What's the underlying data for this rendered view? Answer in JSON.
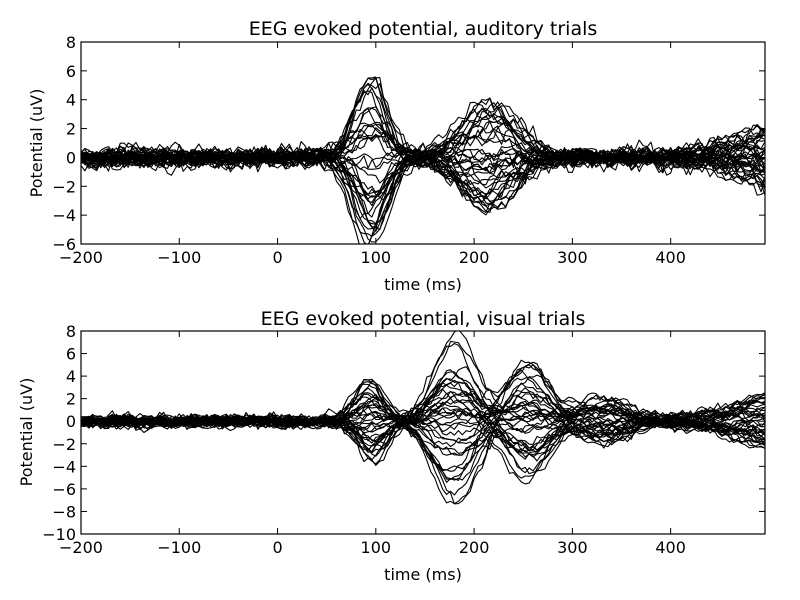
{
  "chart_data": [
    {
      "type": "line",
      "title": "EEG evoked potential, auditory trials",
      "xlabel": "time (ms)",
      "ylabel": "Potential (uV)",
      "xlim": [
        -200,
        496
      ],
      "ylim": [
        -6,
        8
      ],
      "xticks": [
        -200,
        -100,
        0,
        100,
        200,
        300,
        400
      ],
      "xtick_labels": [
        "−200",
        "−100",
        "0",
        "100",
        "200",
        "300",
        "400"
      ],
      "yticks": [
        -6,
        -4,
        -2,
        0,
        2,
        4,
        6,
        8
      ],
      "ytick_labels": [
        "−6",
        "−4",
        "−2",
        "0",
        "2",
        "4",
        "6",
        "8"
      ],
      "grid": false,
      "line_color": "#000000",
      "n_trials": 40,
      "x_step": 4,
      "components": [
        {
          "latency": 95,
          "width": 17,
          "amp_max": 6.2
        },
        {
          "latency": 215,
          "width": 28,
          "amp_max": 4.0
        }
      ],
      "noise_uV": 0.6,
      "end_drift": true
    },
    {
      "type": "line",
      "title": "EEG evoked potential, visual trials",
      "xlabel": "time (ms)",
      "ylabel": "Potential (uV)",
      "xlim": [
        -200,
        496
      ],
      "ylim": [
        -10,
        8
      ],
      "xticks": [
        -200,
        -100,
        0,
        100,
        200,
        300,
        400
      ],
      "xtick_labels": [
        "−200",
        "−100",
        "0",
        "100",
        "200",
        "300",
        "400"
      ],
      "yticks": [
        -10,
        -8,
        -6,
        -4,
        -2,
        0,
        2,
        4,
        6,
        8
      ],
      "ytick_labels": [
        "−10",
        "−8",
        "−6",
        "−4",
        "−2",
        "0",
        "2",
        "4",
        "6",
        "8"
      ],
      "grid": false,
      "line_color": "#000000",
      "n_trials": 40,
      "x_step": 4,
      "components": [
        {
          "latency": 95,
          "width": 15,
          "amp_max": 3.8
        },
        {
          "latency": 180,
          "width": 22,
          "amp_max": 7.8
        },
        {
          "latency": 255,
          "width": 22,
          "amp_max": 5.5
        },
        {
          "latency": 330,
          "width": 25,
          "amp_max": 2.2
        }
      ],
      "noise_uV": 0.5,
      "end_drift": true
    }
  ]
}
